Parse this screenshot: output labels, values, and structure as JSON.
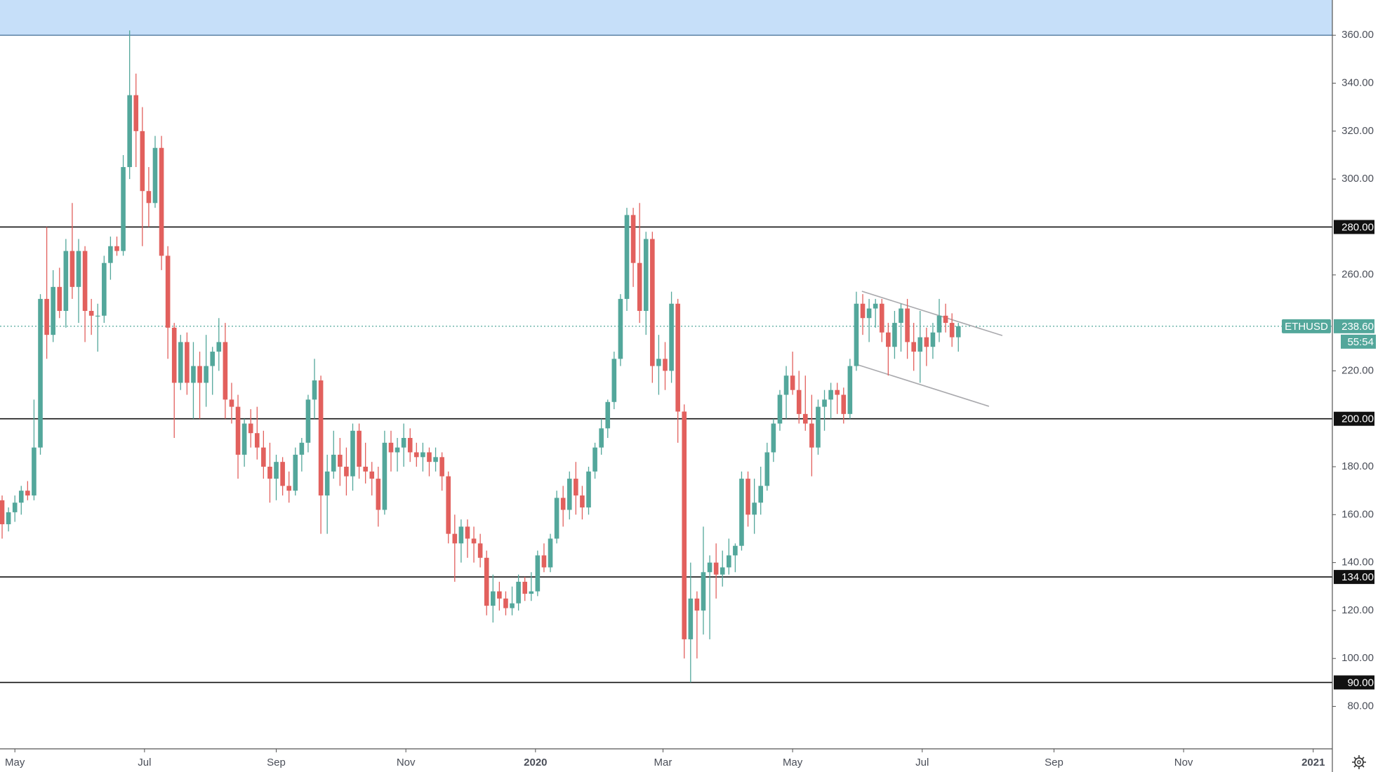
{
  "chart_data": {
    "type": "candlestick",
    "symbol": "ETHUSD",
    "countdown": "55:54",
    "last_price": {
      "value": 238.6,
      "label": "238.60"
    },
    "up_color": "#53a79b",
    "down_color": "#e2605d",
    "xlim": [
      -7,
      620
    ],
    "ylim": [
      62.3,
      374.7
    ],
    "xticks": [
      {
        "value": 0,
        "label": "May"
      },
      {
        "value": 61,
        "label": "Jul"
      },
      {
        "value": 123,
        "label": "Sep"
      },
      {
        "value": 184,
        "label": "Nov"
      },
      {
        "value": 245,
        "label": "2020",
        "bold": true
      },
      {
        "value": 305,
        "label": "Mar"
      },
      {
        "value": 366,
        "label": "May"
      },
      {
        "value": 427,
        "label": "Jul"
      },
      {
        "value": 489,
        "label": "Sep"
      },
      {
        "value": 550,
        "label": "Nov"
      },
      {
        "value": 611,
        "label": "2021",
        "bold": true
      }
    ],
    "yticks": [
      {
        "value": 360,
        "label": "360.00"
      },
      {
        "value": 340,
        "label": "340.00"
      },
      {
        "value": 320,
        "label": "320.00"
      },
      {
        "value": 300,
        "label": "300.00"
      },
      {
        "value": 260,
        "label": "260.00"
      },
      {
        "value": 220,
        "label": "220.00"
      },
      {
        "value": 180,
        "label": "180.00"
      },
      {
        "value": 160,
        "label": "160.00"
      },
      {
        "value": 140,
        "label": "140.00"
      },
      {
        "value": 120,
        "label": "120.00"
      },
      {
        "value": 100,
        "label": "100.00"
      },
      {
        "value": 80,
        "label": "80.00"
      }
    ],
    "levels": [
      {
        "value": 360,
        "label": "",
        "zone_color": "#c6dff9"
      }
    ],
    "x": [
      -6,
      -3,
      0,
      3,
      6,
      9,
      12,
      15,
      18,
      21,
      24,
      27,
      30,
      33,
      36,
      39,
      42,
      45,
      48,
      51,
      54,
      57,
      60,
      63,
      66,
      69,
      72,
      75,
      78,
      81,
      84,
      87,
      90,
      93,
      96,
      99,
      102,
      105,
      108,
      111,
      114,
      117,
      120,
      123,
      126,
      129,
      132,
      135,
      138,
      141,
      144,
      147,
      150,
      153,
      156,
      159,
      162,
      165,
      168,
      171,
      174,
      177,
      180,
      183,
      186,
      189,
      192,
      195,
      198,
      201,
      204,
      207,
      210,
      213,
      216,
      219,
      222,
      225,
      228,
      231,
      234,
      237,
      240,
      243,
      246,
      249,
      252,
      255,
      258,
      261,
      264,
      267,
      270,
      273,
      276,
      279,
      282,
      285,
      288,
      291,
      294,
      297,
      300,
      303,
      306,
      309,
      312,
      315,
      318,
      321,
      324,
      327,
      330,
      333,
      336,
      339,
      342,
      345,
      348,
      351,
      354,
      357,
      360,
      363,
      366,
      369,
      372,
      375,
      378,
      381,
      384,
      387,
      390,
      393,
      396,
      399,
      402,
      405,
      408,
      411,
      414,
      417,
      420,
      423,
      426,
      429,
      432,
      435,
      438,
      441,
      444
    ],
    "open": [
      166,
      156,
      161,
      165,
      170,
      168,
      188,
      250,
      235,
      255,
      245,
      270,
      255,
      270,
      245,
      243,
      243,
      265,
      272,
      270,
      305,
      335,
      320,
      295,
      290,
      313,
      268,
      238,
      215,
      232,
      215,
      222,
      215,
      222,
      228,
      232,
      208,
      205,
      185,
      198,
      194,
      188,
      180,
      175,
      182,
      172,
      170,
      185,
      190,
      208,
      216,
      168,
      178,
      185,
      180,
      176,
      195,
      180,
      178,
      175,
      162,
      190,
      186,
      188,
      192,
      186,
      184,
      186,
      182,
      184,
      176,
      152,
      148,
      155,
      150,
      148,
      142,
      122,
      128,
      125,
      121,
      123,
      132,
      127,
      128,
      143,
      138,
      150,
      167,
      162,
      175,
      168,
      163,
      178,
      188,
      196,
      207,
      225,
      250,
      285,
      265,
      245,
      275,
      222,
      225,
      220,
      248,
      203,
      108,
      125,
      120,
      136,
      140,
      135,
      138,
      143,
      147,
      175,
      160,
      165,
      172,
      186,
      198,
      210,
      218,
      212,
      202,
      198,
      188,
      205,
      208,
      212,
      210,
      202,
      222,
      248,
      242,
      246,
      248,
      236,
      230,
      240,
      246,
      232,
      228,
      234,
      230,
      236,
      243,
      240,
      234
    ],
    "high": [
      168,
      163,
      168,
      172,
      174,
      208,
      252,
      280,
      262,
      263,
      275,
      290,
      275,
      272,
      250,
      248,
      268,
      276,
      276,
      310,
      362,
      344,
      330,
      305,
      318,
      318,
      272,
      240,
      235,
      236,
      232,
      228,
      235,
      230,
      242,
      240,
      215,
      210,
      200,
      204,
      205,
      195,
      190,
      185,
      184,
      178,
      188,
      192,
      210,
      225,
      218,
      185,
      195,
      192,
      188,
      198,
      198,
      190,
      182,
      180,
      195,
      195,
      192,
      198,
      196,
      190,
      190,
      188,
      188,
      186,
      178,
      160,
      158,
      158,
      155,
      152,
      145,
      135,
      132,
      128,
      130,
      135,
      134,
      136,
      145,
      148,
      152,
      170,
      172,
      178,
      182,
      172,
      180,
      190,
      200,
      208,
      228,
      252,
      288,
      288,
      290,
      278,
      278,
      235,
      232,
      253,
      250,
      206,
      140,
      128,
      155,
      143,
      148,
      145,
      150,
      148,
      178,
      178,
      175,
      180,
      190,
      200,
      212,
      222,
      228,
      220,
      218,
      210,
      208,
      212,
      215,
      215,
      213,
      225,
      253,
      252,
      250,
      250,
      250,
      240,
      245,
      248,
      250,
      240,
      245,
      238,
      240,
      250,
      248,
      244,
      240
    ],
    "low": [
      150,
      153,
      157,
      160,
      166,
      166,
      185,
      225,
      232,
      242,
      238,
      250,
      240,
      232,
      235,
      228,
      240,
      258,
      268,
      268,
      300,
      305,
      272,
      280,
      288,
      262,
      225,
      192,
      212,
      210,
      200,
      200,
      205,
      210,
      220,
      200,
      198,
      175,
      180,
      188,
      183,
      175,
      165,
      166,
      168,
      165,
      168,
      178,
      186,
      200,
      152,
      152,
      175,
      172,
      168,
      170,
      175,
      173,
      168,
      155,
      160,
      178,
      178,
      180,
      182,
      180,
      178,
      176,
      178,
      170,
      148,
      132,
      140,
      142,
      140,
      138,
      118,
      115,
      120,
      118,
      118,
      120,
      124,
      124,
      126,
      136,
      136,
      148,
      155,
      158,
      160,
      158,
      160,
      175,
      185,
      192,
      204,
      222,
      245,
      255,
      240,
      235,
      215,
      210,
      212,
      215,
      190,
      100,
      90,
      100,
      110,
      108,
      125,
      130,
      135,
      136,
      145,
      155,
      152,
      160,
      170,
      182,
      195,
      200,
      210,
      198,
      195,
      176,
      185,
      195,
      200,
      202,
      198,
      200,
      220,
      235,
      232,
      238,
      232,
      218,
      225,
      228,
      225,
      220,
      215,
      222,
      225,
      232,
      236,
      230,
      228
    ],
    "close": [
      156,
      161,
      165,
      170,
      168,
      188,
      250,
      235,
      255,
      245,
      270,
      255,
      270,
      245,
      243,
      243,
      265,
      272,
      270,
      305,
      335,
      320,
      295,
      290,
      313,
      268,
      238,
      215,
      232,
      215,
      222,
      215,
      222,
      228,
      232,
      208,
      205,
      185,
      198,
      194,
      188,
      180,
      175,
      182,
      172,
      170,
      185,
      190,
      208,
      216,
      168,
      178,
      185,
      180,
      176,
      195,
      180,
      178,
      175,
      162,
      190,
      186,
      188,
      192,
      186,
      184,
      186,
      182,
      184,
      176,
      152,
      148,
      155,
      150,
      148,
      142,
      122,
      128,
      125,
      121,
      123,
      132,
      127,
      128,
      143,
      138,
      150,
      167,
      162,
      175,
      168,
      163,
      178,
      188,
      196,
      207,
      225,
      250,
      285,
      265,
      245,
      275,
      222,
      225,
      220,
      248,
      203,
      108,
      125,
      120,
      136,
      140,
      135,
      138,
      143,
      147,
      175,
      160,
      165,
      172,
      186,
      198,
      210,
      218,
      212,
      202,
      198,
      188,
      205,
      208,
      212,
      210,
      202,
      222,
      248,
      242,
      246,
      248,
      236,
      230,
      240,
      246,
      232,
      228,
      234,
      230,
      236,
      243,
      240,
      234,
      238.6
    ],
    "hlines": [
      {
        "value": 280,
        "label": "280.00"
      },
      {
        "value": 200,
        "label": "200.00"
      },
      {
        "value": 134,
        "label": "134.00"
      },
      {
        "value": 90,
        "label": "90.00"
      }
    ],
    "trendlines": [
      {
        "x": [
          398.6,
          464.7
        ],
        "y": [
          253.2,
          234.7
        ]
      },
      {
        "x": [
          395.3,
          458.4
        ],
        "y": [
          222.9,
          205.2
        ]
      }
    ]
  }
}
